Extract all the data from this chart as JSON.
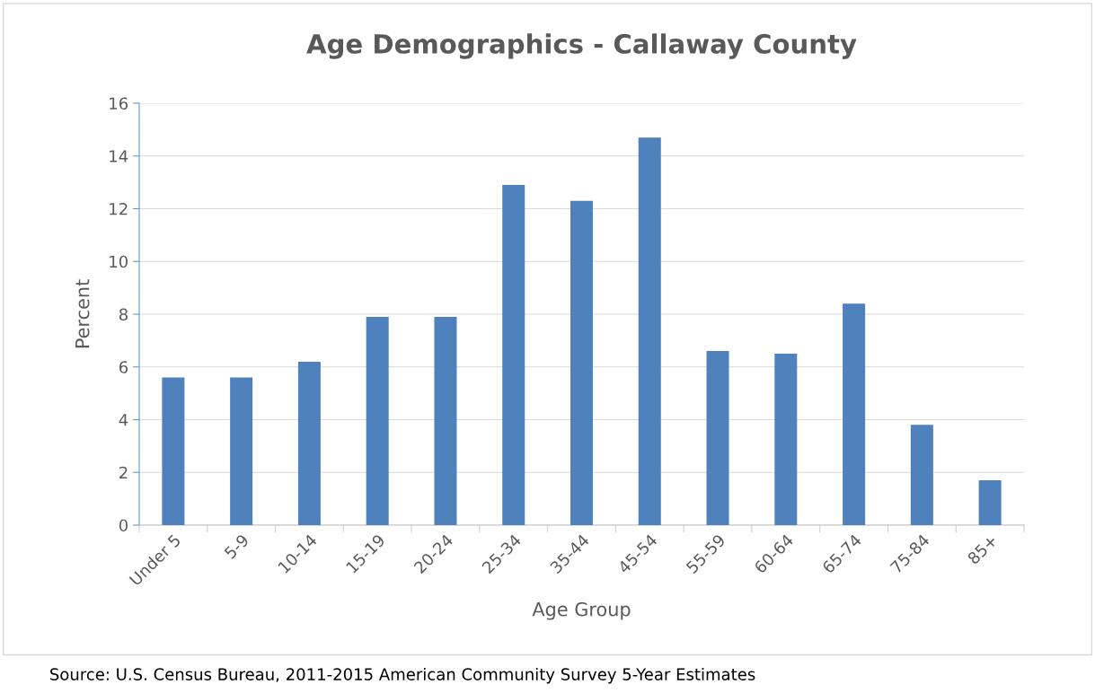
{
  "chart_data": {
    "type": "bar",
    "title": "Age Demographics - Callaway County",
    "xlabel": "Age Group",
    "ylabel": "Percent",
    "categories": [
      "Under 5",
      "5-9",
      "10-14",
      "15-19",
      "20-24",
      "25-34",
      "35-44",
      "45-54",
      "55-59",
      "60-64",
      "65-74",
      "75-84",
      "85+"
    ],
    "values": [
      5.6,
      5.6,
      6.2,
      7.9,
      7.9,
      12.9,
      12.3,
      14.7,
      6.6,
      6.5,
      8.4,
      3.8,
      1.7
    ],
    "color": "#4f81bd",
    "ylim": [
      0,
      16
    ],
    "yticks": [
      0,
      2,
      4,
      6,
      8,
      10,
      12,
      14,
      16
    ],
    "grid": "y",
    "legend": false,
    "annotations": [
      "Source: U.S. Census Bureau, 2011-2015 American Community Survey 5-Year Estimates"
    ]
  }
}
